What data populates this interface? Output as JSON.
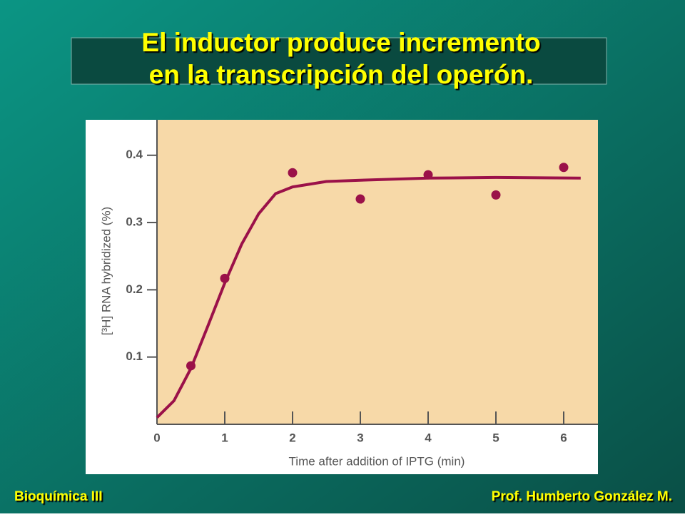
{
  "slide": {
    "title_line1": "El inductor produce incremento",
    "title_line2": "en la transcripción del operón.",
    "footer_left": "Bioquímica III",
    "footer_right": "Prof. Humberto González M."
  },
  "chart_data": {
    "type": "scatter",
    "xlabel": "Time after addition of IPTG (min)",
    "ylabel": "[³H] RNA hybridized (%)",
    "xlim": [
      0,
      6.5
    ],
    "ylim": [
      0,
      0.45
    ],
    "xticks": [
      0,
      1,
      2,
      3,
      4,
      5,
      6
    ],
    "yticks": [
      0.1,
      0.2,
      0.3,
      0.4
    ],
    "grid": false,
    "series": [
      {
        "mode": "markers",
        "color": "#9b1149",
        "x": [
          0.5,
          1,
          2,
          3,
          4,
          5,
          6
        ],
        "values": [
          0.087,
          0.217,
          0.374,
          0.335,
          0.371,
          0.341,
          0.382
        ]
      },
      {
        "mode": "line",
        "color": "#9b1149",
        "x": [
          0,
          0.25,
          0.5,
          0.75,
          1,
          1.25,
          1.5,
          1.75,
          2,
          2.5,
          3,
          4,
          5,
          6.25
        ],
        "values": [
          0.01,
          0.035,
          0.083,
          0.146,
          0.21,
          0.268,
          0.313,
          0.343,
          0.353,
          0.361,
          0.363,
          0.366,
          0.367,
          0.366
        ]
      }
    ]
  }
}
